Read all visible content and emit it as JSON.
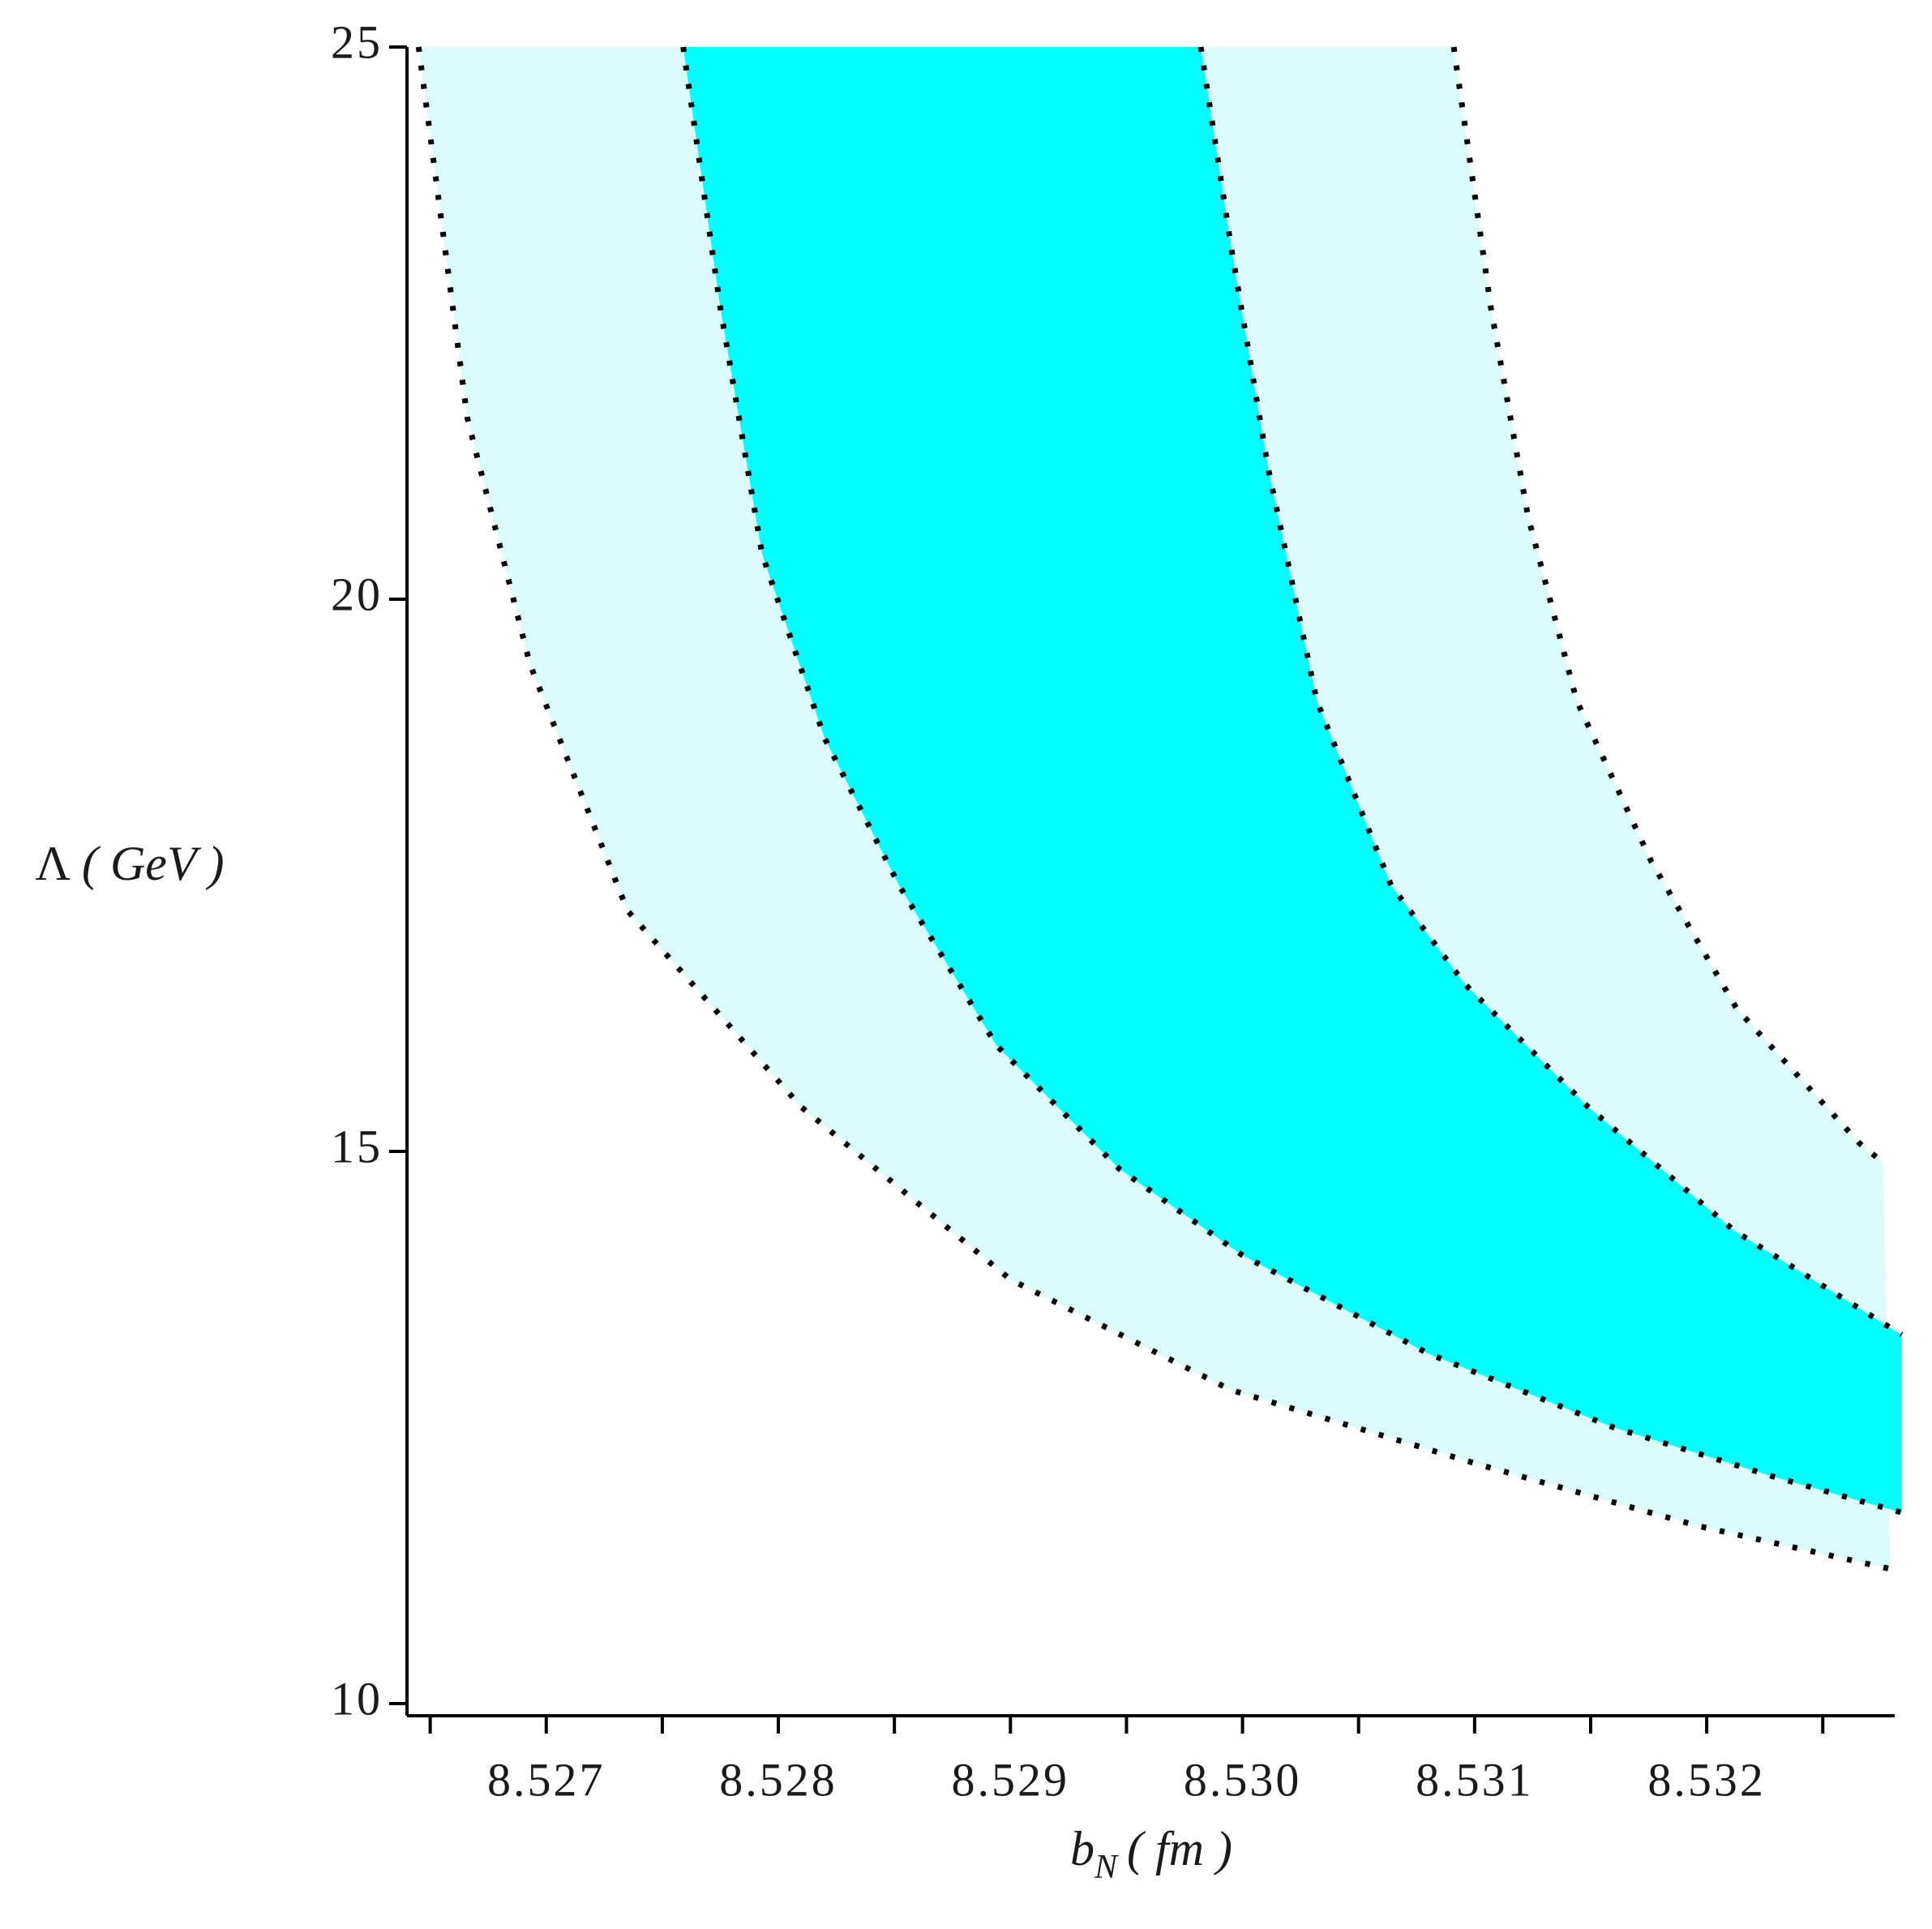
{
  "chart_data": {
    "type": "region",
    "xlabel": {
      "symbol": "b",
      "subscript": "N",
      "unit": "( fm )"
    },
    "ylabel": {
      "symbol": "Λ",
      "unit": "( GeV )"
    },
    "xlim": [
      8.5264,
      8.53281
    ],
    "ylim": [
      9.89,
      25
    ],
    "xticks": [
      {
        "value": 8.527,
        "label": "8.527"
      },
      {
        "value": 8.528,
        "label": "8.528"
      },
      {
        "value": 8.529,
        "label": "8.529"
      },
      {
        "value": 8.53,
        "label": "8.530"
      },
      {
        "value": 8.531,
        "label": "8.531"
      },
      {
        "value": 8.532,
        "label": "8.532"
      }
    ],
    "xminorticks": [
      8.5265,
      8.5275,
      8.5285,
      8.5295,
      8.5305,
      8.5315,
      8.5325
    ],
    "yticks": [
      10,
      15,
      20,
      25
    ],
    "outer_fill": "#dcfcfc",
    "inner_fill": "#00ffff",
    "series": [
      {
        "color": "#000000",
        "x": [
          8.52645,
          8.52666,
          8.52693,
          8.52735,
          8.5281,
          8.529,
          8.52995,
          8.53101,
          8.53196,
          8.53279
        ],
        "values": [
          25,
          21.64,
          19.41,
          17.18,
          15.4,
          13.84,
          12.84,
          12.17,
          11.61,
          11.22
        ]
      },
      {
        "color": "#000000",
        "x": [
          8.52759,
          8.52775,
          8.52793,
          8.5282,
          8.52852,
          8.52894,
          8.52947,
          8.53,
          8.5308,
          8.5316,
          8.53228,
          8.53284
        ],
        "values": [
          25,
          22.64,
          20.41,
          18.74,
          17.41,
          15.96,
          14.84,
          14.06,
          13.17,
          12.5,
          12.06,
          11.73
        ]
      },
      {
        "color": "#000000",
        "x": [
          8.52982,
          8.52995,
          8.53011,
          8.53032,
          8.53064,
          8.53096,
          8.53149,
          8.53212,
          8.53284
        ],
        "values": [
          25,
          23.2,
          21.19,
          19.08,
          17.41,
          16.51,
          15.4,
          14.28,
          13.34
        ]
      },
      {
        "color": "#000000",
        "x": [
          8.53091,
          8.53107,
          8.53123,
          8.53144,
          8.53176,
          8.53213,
          8.53266,
          8.53276
        ],
        "values": [
          25,
          22.64,
          20.75,
          19.08,
          17.63,
          16.29,
          15.07,
          14.9
        ]
      }
    ]
  }
}
